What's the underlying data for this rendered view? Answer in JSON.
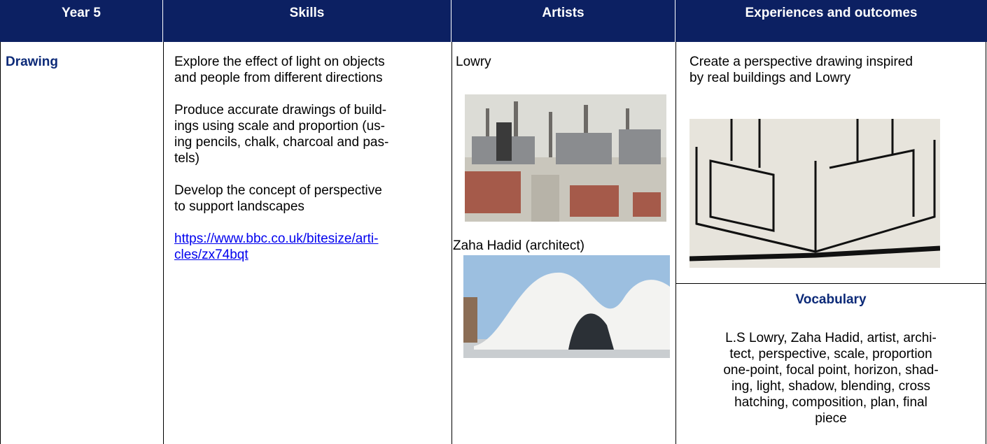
{
  "table": {
    "header": [
      "Year 5",
      "Skills",
      "Artists",
      "Experiences and outcomes"
    ],
    "rows": [
      {
        "subject": "Drawing",
        "skills": [
          [
            "Explore the effect of light on objects",
            "and people from different directions"
          ],
          [
            "Produce accurate drawings of build-",
            "ings using scale and proportion (us-",
            "ing pencils, chalk, charcoal and pas-",
            "tels)"
          ],
          [
            "Develop the concept of perspective",
            "to support landscapes"
          ]
        ],
        "link": [
          "https://www.bbc.co.uk/bitesize/arti-",
          "cles/zx74bqt"
        ],
        "artists": [
          "Lowry",
          "Zaha Hadid (architect)"
        ],
        "outcome": [
          "Create a perspective drawing inspired",
          "by real buildings and Lowry"
        ],
        "vocabulary_title": "Vocabulary",
        "vocabulary": [
          "L.S Lowry, Zaha Hadid, artist, archi-",
          "tect, perspective, scale, proportion",
          "one-point, focal point, horizon, shad-",
          "ing, light, shadow, blending, cross",
          "hatching, composition, plan, final",
          "piece"
        ]
      }
    ]
  }
}
